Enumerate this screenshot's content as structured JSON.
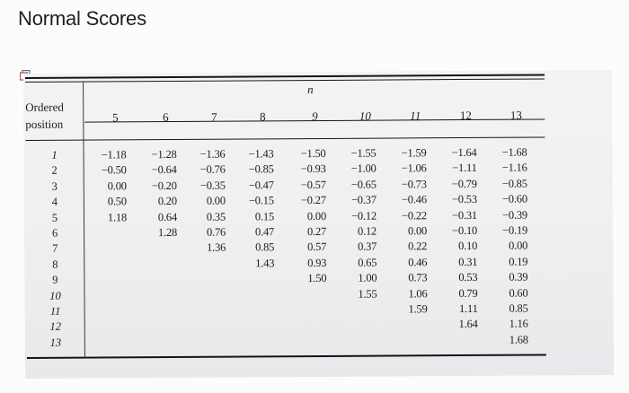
{
  "page": {
    "title": "Normal Scores"
  },
  "table": {
    "row_header_line1": "Ordered",
    "row_header_line2": "position",
    "n_label": "n",
    "columns": [
      "5",
      "6",
      "7",
      "8",
      "9",
      "10",
      "11",
      "12",
      "13"
    ],
    "positions": [
      "1",
      "2",
      "3",
      "4",
      "5",
      "6",
      "7",
      "8",
      "9",
      "10",
      "11",
      "12",
      "13"
    ],
    "data": [
      [
        "−1.18",
        "−0.50",
        "0.00",
        "0.50",
        "1.18"
      ],
      [
        "−1.28",
        "−0.64",
        "−0.20",
        "0.20",
        "0.64",
        "1.28"
      ],
      [
        "−1.36",
        "−0.76",
        "−0.35",
        "0.00",
        "0.35",
        "0.76",
        "1.36"
      ],
      [
        "−1.43",
        "−0.85",
        "−0.47",
        "−0.15",
        "0.15",
        "0.47",
        "0.85",
        "1.43"
      ],
      [
        "−1.50",
        "−0.93",
        "−0.57",
        "−0.27",
        "0.00",
        "0.27",
        "0.57",
        "0.93",
        "1.50"
      ],
      [
        "−1.55",
        "−1.00",
        "−0.65",
        "−0.37",
        "−0.12",
        "0.12",
        "0.37",
        "0.65",
        "1.00",
        "1.55"
      ],
      [
        "−1.59",
        "−1.06",
        "−0.73",
        "−0.46",
        "−0.22",
        "0.00",
        "0.22",
        "0.46",
        "0.73",
        "1.06",
        "1.59"
      ],
      [
        "−1.64",
        "−1.11",
        "−0.79",
        "−0.53",
        "−0.31",
        "−0.10",
        "0.10",
        "0.31",
        "0.53",
        "0.79",
        "1.11",
        "1.64"
      ],
      [
        "−1.68",
        "−1.16",
        "−0.85",
        "−0.60",
        "−0.39",
        "−0.19",
        "0.00",
        "0.19",
        "0.39",
        "0.60",
        "0.85",
        "1.16",
        "1.68"
      ]
    ]
  }
}
